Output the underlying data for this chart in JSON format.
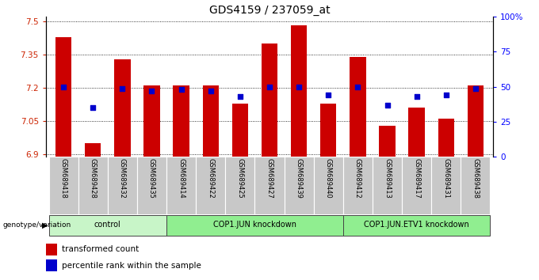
{
  "title": "GDS4159 / 237059_at",
  "samples": [
    "GSM689418",
    "GSM689428",
    "GSM689432",
    "GSM689435",
    "GSM689414",
    "GSM689422",
    "GSM689425",
    "GSM689427",
    "GSM689439",
    "GSM689440",
    "GSM689412",
    "GSM689413",
    "GSM689417",
    "GSM689431",
    "GSM689438"
  ],
  "red_values": [
    7.43,
    6.95,
    7.33,
    7.21,
    7.21,
    7.21,
    7.13,
    7.4,
    7.48,
    7.13,
    7.34,
    7.03,
    7.11,
    7.06,
    7.21
  ],
  "blue_values": [
    50,
    35,
    49,
    47,
    48,
    47,
    43,
    50,
    50,
    44,
    50,
    37,
    43,
    44,
    49
  ],
  "groups": [
    {
      "label": "control",
      "start": 0,
      "end": 4,
      "color": "#c8f5c8"
    },
    {
      "label": "COP1.JUN knockdown",
      "start": 4,
      "end": 10,
      "color": "#90ee90"
    },
    {
      "label": "COP1.JUN.ETV1 knockdown",
      "start": 10,
      "end": 15,
      "color": "#90ee90"
    }
  ],
  "ylim_left": [
    6.89,
    7.52
  ],
  "ylim_right": [
    0,
    100
  ],
  "yticks_left": [
    6.9,
    7.05,
    7.2,
    7.35,
    7.5
  ],
  "yticks_right": [
    0,
    25,
    50,
    75,
    100
  ],
  "bar_color": "#cc0000",
  "dot_color": "#0000cc",
  "bar_bottom": 6.89
}
